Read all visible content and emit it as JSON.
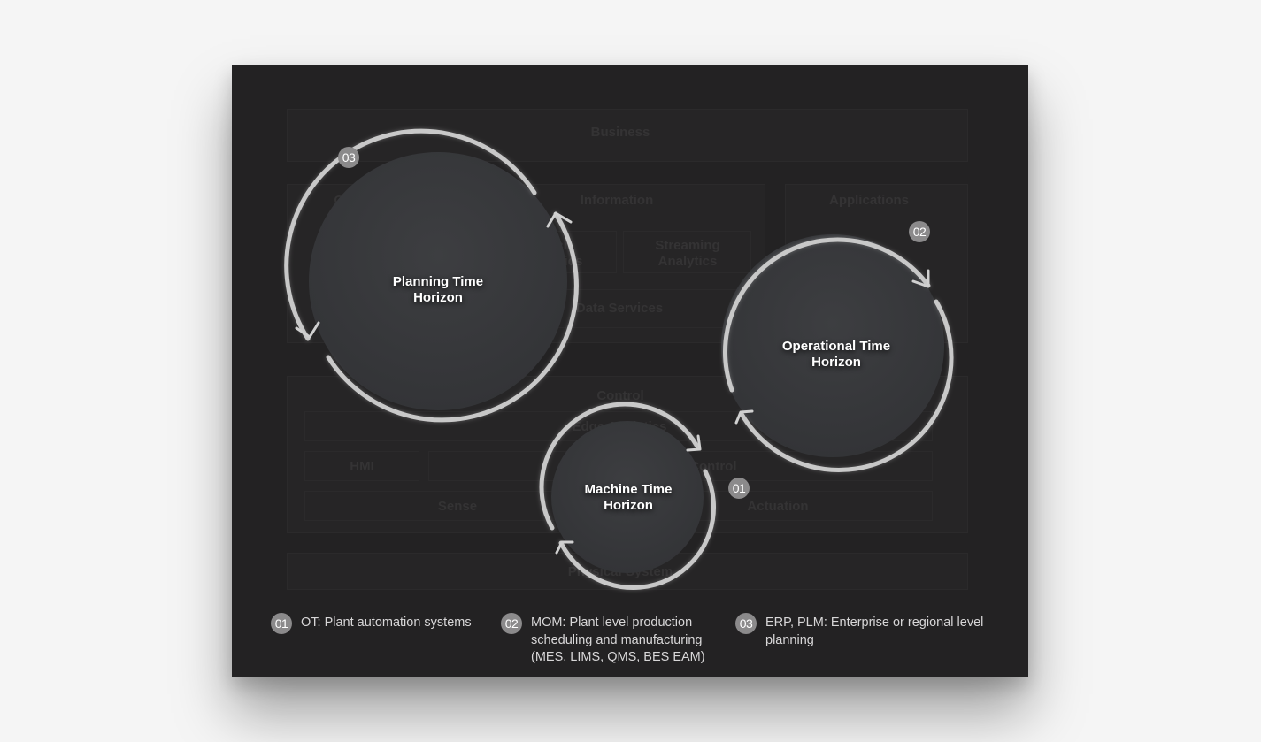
{
  "background_labels": {
    "business": "Business",
    "operations": "Operations",
    "information": "Information",
    "applications": "Applications",
    "batch_analytics": "Batch Analytics",
    "streaming_analytics": "Streaming Analytics",
    "data_services": "Data Services",
    "control": "Control",
    "edge_analytics": "Edge Analytics",
    "hmi": "HMI",
    "industrial_control": "Industrial Control",
    "sense": "Sense",
    "actuation": "Actuation",
    "physical_system": "Physical System"
  },
  "circles": {
    "planning": {
      "title": "Planning Time Horizon",
      "badge": "03"
    },
    "operational": {
      "title": "Operational Time Horizon",
      "badge": "02"
    },
    "machine": {
      "title": "Machine Time Horizon",
      "badge": "01"
    }
  },
  "legend": [
    {
      "badge": "01",
      "text": "OT: Plant automation systems"
    },
    {
      "badge": "02",
      "text": "MOM: Plant level production scheduling and manufacturing (MES, LIMS, QMS, BES EAM)"
    },
    {
      "badge": "03",
      "text": "ERP, PLM: Enterprise or regional level planning"
    }
  ],
  "colors": {
    "card": "#232223",
    "circle_fill": "#393a3d",
    "ring": "#c8c8c8",
    "badge": "#8b8a8b"
  }
}
